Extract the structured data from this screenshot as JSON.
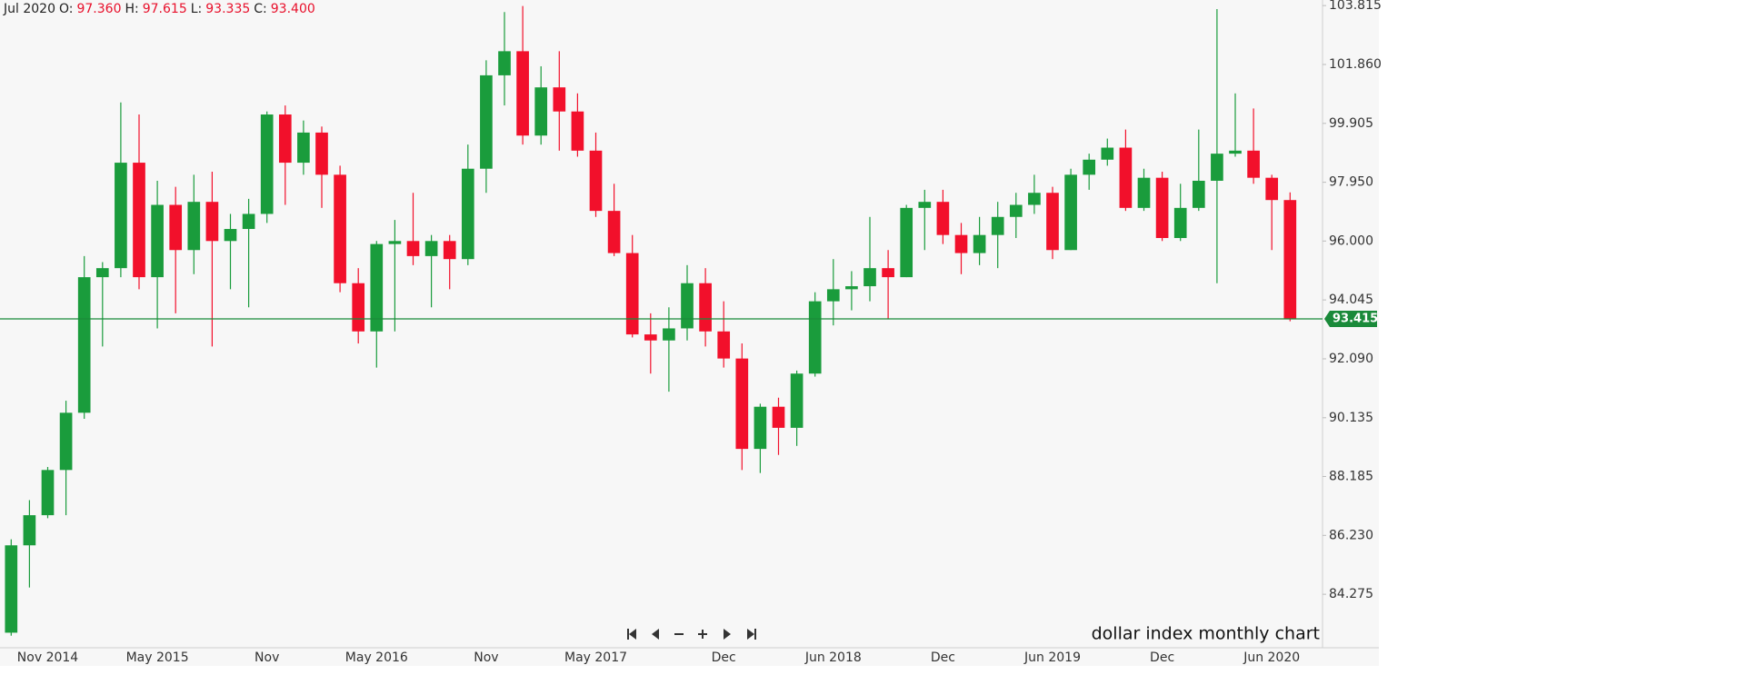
{
  "header": {
    "period": "Jul 2020",
    "fields": [
      {
        "key": "O:",
        "value": "97.360"
      },
      {
        "key": "H:",
        "value": "97.615"
      },
      {
        "key": "L:",
        "value": "93.335"
      },
      {
        "key": "C:",
        "value": "93.400"
      }
    ]
  },
  "chart_data": {
    "type": "candlestick",
    "annotation": "dollar index monthly chart",
    "categories": [
      null,
      null,
      "Nov 2014",
      null,
      null,
      null,
      null,
      null,
      "May 2015",
      null,
      null,
      null,
      null,
      null,
      "Nov",
      null,
      null,
      null,
      null,
      null,
      "May 2016",
      null,
      null,
      null,
      null,
      null,
      "Nov",
      null,
      null,
      null,
      null,
      null,
      "May 2017",
      null,
      null,
      null,
      null,
      null,
      null,
      "Dec",
      null,
      null,
      null,
      null,
      null,
      "Jun 2018",
      null,
      null,
      null,
      null,
      null,
      "Dec",
      null,
      null,
      null,
      null,
      null,
      "Jun 2019",
      null,
      null,
      null,
      null,
      null,
      "Dec",
      null,
      null,
      null,
      null,
      null,
      "Jun 2020",
      null
    ],
    "open": [
      83.0,
      85.9,
      86.9,
      88.4,
      90.3,
      94.8,
      95.1,
      98.6,
      94.8,
      97.2,
      95.7,
      97.3,
      96.0,
      96.4,
      96.9,
      100.2,
      98.6,
      99.6,
      98.2,
      94.6,
      93.0,
      95.9,
      96.0,
      95.5,
      96.0,
      95.4,
      98.4,
      101.5,
      102.3,
      99.5,
      101.1,
      100.3,
      99.0,
      97.0,
      95.6,
      92.9,
      92.7,
      93.1,
      94.6,
      93.0,
      92.1,
      89.1,
      90.5,
      89.8,
      91.6,
      94.0,
      94.4,
      94.5,
      95.1,
      94.8,
      97.1,
      97.3,
      96.2,
      95.6,
      96.2,
      96.8,
      97.2,
      97.6,
      95.7,
      98.2,
      98.7,
      99.1,
      97.1,
      98.1,
      96.1,
      97.1,
      98.0,
      98.9,
      99.0,
      98.1,
      97.36
    ],
    "high": [
      86.1,
      87.4,
      88.5,
      90.7,
      95.5,
      95.3,
      100.6,
      100.2,
      98.0,
      97.8,
      98.2,
      98.3,
      96.9,
      97.4,
      100.3,
      100.5,
      100.0,
      99.8,
      98.5,
      95.1,
      96.0,
      96.7,
      97.6,
      96.2,
      96.2,
      99.2,
      102.0,
      103.6,
      103.8,
      101.8,
      102.3,
      100.9,
      99.6,
      97.9,
      96.2,
      93.6,
      93.8,
      95.2,
      95.1,
      94.0,
      92.6,
      90.6,
      90.8,
      91.7,
      94.3,
      95.4,
      95.0,
      96.8,
      95.7,
      97.2,
      97.7,
      97.7,
      96.6,
      96.8,
      97.3,
      97.6,
      98.2,
      97.8,
      98.4,
      98.9,
      99.4,
      99.7,
      98.4,
      98.3,
      97.9,
      99.7,
      103.7,
      100.9,
      100.4,
      98.2,
      97.615
    ],
    "low": [
      82.9,
      84.5,
      86.8,
      86.9,
      90.1,
      92.5,
      94.8,
      94.4,
      93.1,
      93.6,
      94.9,
      92.5,
      94.4,
      93.8,
      96.6,
      97.2,
      98.2,
      97.1,
      94.3,
      92.6,
      91.8,
      93.0,
      95.2,
      93.8,
      94.4,
      95.2,
      97.6,
      100.5,
      99.2,
      99.2,
      99.0,
      98.8,
      96.8,
      95.5,
      92.8,
      91.6,
      91.0,
      92.7,
      92.5,
      91.8,
      88.4,
      88.3,
      88.9,
      89.2,
      91.5,
      93.2,
      93.7,
      94.0,
      93.4,
      94.8,
      95.7,
      95.9,
      94.9,
      95.2,
      95.1,
      96.1,
      96.9,
      95.4,
      95.7,
      97.7,
      98.5,
      97.0,
      97.0,
      96.0,
      96.0,
      97.0,
      94.6,
      98.8,
      97.9,
      95.7,
      93.335
    ],
    "close": [
      85.9,
      86.9,
      88.4,
      90.3,
      94.8,
      95.1,
      98.6,
      94.8,
      97.2,
      95.7,
      97.3,
      96.0,
      96.4,
      96.9,
      100.2,
      98.6,
      99.6,
      98.2,
      94.6,
      93.0,
      95.9,
      96.0,
      95.5,
      96.0,
      95.4,
      98.4,
      101.5,
      102.3,
      99.5,
      101.1,
      100.3,
      99.0,
      97.0,
      95.6,
      92.9,
      92.7,
      93.1,
      94.6,
      93.0,
      92.1,
      89.1,
      90.5,
      89.8,
      91.6,
      94.0,
      94.4,
      94.5,
      95.1,
      94.8,
      97.1,
      97.3,
      96.2,
      95.6,
      96.2,
      96.8,
      97.2,
      97.6,
      95.7,
      98.2,
      98.7,
      99.1,
      97.1,
      98.1,
      96.1,
      97.1,
      98.0,
      98.9,
      99.0,
      98.1,
      97.36,
      93.4
    ],
    "up_color": "#1a9c3c",
    "down_color": "#f2102b",
    "price_line": {
      "value": 93.415,
      "label": "93.415",
      "color": "#1a8a3a"
    },
    "ylim": [
      82.5,
      104.0
    ],
    "yticks": [
      {
        "value": 103.815,
        "label": "103.815"
      },
      {
        "value": 101.86,
        "label": "101.860"
      },
      {
        "value": 99.905,
        "label": "99.905"
      },
      {
        "value": 97.95,
        "label": "97.950"
      },
      {
        "value": 96.0,
        "label": "96.000"
      },
      {
        "value": 94.045,
        "label": "94.045"
      },
      {
        "value": 92.09,
        "label": "92.090"
      },
      {
        "value": 90.135,
        "label": "90.135"
      },
      {
        "value": 88.185,
        "label": "88.185"
      },
      {
        "value": 86.23,
        "label": "86.230"
      },
      {
        "value": 84.275,
        "label": "84.275"
      }
    ]
  }
}
